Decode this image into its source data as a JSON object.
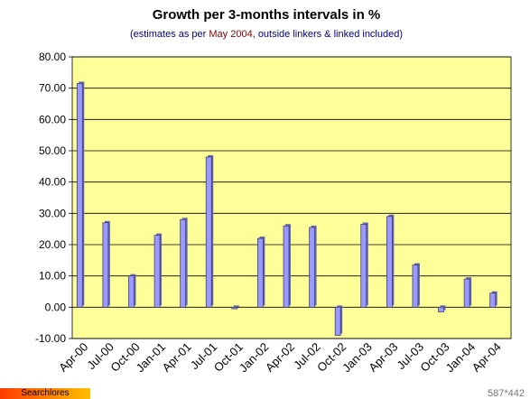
{
  "chart_data": {
    "type": "bar",
    "title": "Growth per 3-months intervals in %",
    "subtitle": {
      "prefix": "(estimates as per ",
      "highlight": "May 2004",
      "suffix": ", outside linkers & linked included)"
    },
    "categories": [
      "Apr-00",
      "Jul-00",
      "Oct-00",
      "Jan-01",
      "Apr-01",
      "Jul-01",
      "Oct-01",
      "Jan-02",
      "Apr-02",
      "Jul-02",
      "Oct-02",
      "Jan-03",
      "Apr-03",
      "Jul-03",
      "Oct-03",
      "Jan-04",
      "Apr-04"
    ],
    "values": [
      71.5,
      27.0,
      10.0,
      23.0,
      28.0,
      48.0,
      -0.5,
      22.0,
      26.0,
      25.5,
      -9.0,
      26.5,
      29.0,
      13.5,
      -1.5,
      9.0,
      4.5
    ],
    "y_ticks": [
      "-10.00",
      "0.00",
      "10.00",
      "20.00",
      "30.00",
      "40.00",
      "50.00",
      "60.00",
      "70.00",
      "80.00"
    ],
    "ylim": [
      -10,
      80
    ],
    "grid": true,
    "colors": {
      "plot_background": "#ffff99",
      "bar_fill": "#9999ff",
      "bar_edge": "#333366",
      "subtitle_text": "#000080",
      "highlight_text": "#800000"
    }
  },
  "footer": {
    "badge_label": "Searchlores",
    "dimensions_label": "587*442"
  }
}
